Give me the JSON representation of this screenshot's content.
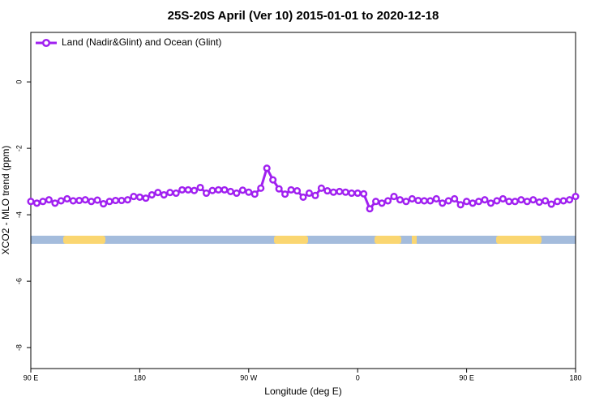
{
  "chart_data": {
    "type": "line",
    "title": "25S-20S April (Ver 10)   2015-01-01 to 2020-12-18",
    "x_label": "Longitude (deg E)",
    "y_label": "XCO2 - MLO trend (ppm)",
    "x": [
      90,
      95,
      100,
      105,
      110,
      115,
      120,
      125,
      130,
      135,
      140,
      145,
      150,
      155,
      160,
      165,
      170,
      175,
      180,
      185,
      190,
      195,
      200,
      205,
      210,
      215,
      220,
      225,
      230,
      235,
      240,
      245,
      250,
      255,
      260,
      265,
      270,
      275,
      280,
      285,
      290,
      295,
      300,
      305,
      310,
      315,
      320,
      325,
      330,
      335,
      340,
      345,
      350,
      355,
      360,
      365,
      370,
      375,
      380,
      385,
      390,
      395,
      400,
      405,
      410,
      415,
      420,
      425,
      430,
      435,
      440,
      445,
      450,
      455,
      460,
      465,
      470,
      475,
      480,
      485,
      490,
      495,
      500,
      505,
      510,
      515,
      520,
      525,
      530,
      535,
      540
    ],
    "series": [
      {
        "name": "Land (Nadir&Glint) and Ocean (Glint)",
        "color": "#a020f0",
        "values": [
          -3.6,
          -3.65,
          -3.6,
          -3.55,
          -3.65,
          -3.58,
          -3.52,
          -3.58,
          -3.57,
          -3.55,
          -3.6,
          -3.56,
          -3.67,
          -3.6,
          -3.57,
          -3.57,
          -3.55,
          -3.45,
          -3.47,
          -3.5,
          -3.4,
          -3.33,
          -3.4,
          -3.33,
          -3.35,
          -3.25,
          -3.25,
          -3.27,
          -3.18,
          -3.35,
          -3.27,
          -3.25,
          -3.25,
          -3.3,
          -3.35,
          -3.26,
          -3.32,
          -3.38,
          -3.2,
          -2.6,
          -2.95,
          -3.22,
          -3.38,
          -3.25,
          -3.28,
          -3.47,
          -3.35,
          -3.42,
          -3.2,
          -3.28,
          -3.32,
          -3.3,
          -3.32,
          -3.35,
          -3.35,
          -3.37,
          -3.82,
          -3.6,
          -3.65,
          -3.58,
          -3.45,
          -3.55,
          -3.6,
          -3.52,
          -3.57,
          -3.58,
          -3.58,
          -3.52,
          -3.65,
          -3.58,
          -3.52,
          -3.7,
          -3.6,
          -3.65,
          -3.6,
          -3.55,
          -3.65,
          -3.58,
          -3.52,
          -3.6,
          -3.6,
          -3.55,
          -3.6,
          -3.55,
          -3.62,
          -3.58,
          -3.68,
          -3.6,
          -3.58,
          -3.55,
          -3.45
        ]
      }
    ],
    "xlim": [
      90,
      540
    ],
    "xticks": [
      {
        "value": 90,
        "label": "90 E"
      },
      180,
      {
        "value": 270,
        "label": "90 W"
      },
      {
        "value": 360,
        "label": "0"
      },
      {
        "value": 450,
        "label": "90 E"
      },
      {
        "value": 540,
        "label": "180"
      }
    ],
    "ylim": [
      -8.63,
      1.49
    ],
    "yticks": [
      0,
      -2,
      -4,
      -6,
      -8
    ],
    "legend": "top-left"
  }
}
